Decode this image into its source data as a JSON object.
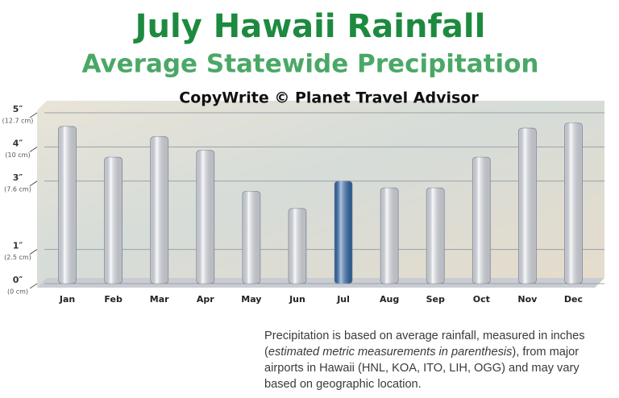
{
  "chart_data": {
    "type": "bar",
    "title": "July Hawaii Rainfall",
    "subtitle": "Average Statewide Precipitation",
    "copyright": "CopyWrite © Planet Travel Advisor",
    "categories": [
      "Jan",
      "Feb",
      "Mar",
      "Apr",
      "May",
      "Jun",
      "Jul",
      "Aug",
      "Sep",
      "Oct",
      "Nov",
      "Dec"
    ],
    "values": [
      4.6,
      3.7,
      4.3,
      3.9,
      2.7,
      2.2,
      3.0,
      2.8,
      2.8,
      3.7,
      4.55,
      4.7
    ],
    "colors": [
      "#eef2fa",
      "#eef2fa",
      "#eef2fa",
      "#eef2fa",
      "#eef2fa",
      "#eef2fa",
      "#2f6db5",
      "#eef2fa",
      "#eef2fa",
      "#eef2fa",
      "#eef2fa",
      "#eef2fa"
    ],
    "ylim": [
      0,
      5
    ],
    "yticks": [
      {
        "value": 0,
        "label": "0″"
      },
      {
        "value": 1,
        "label": "1″"
      },
      {
        "value": 3,
        "label": "3″"
      },
      {
        "value": 4,
        "label": "4″"
      },
      {
        "value": 5,
        "label": "5″"
      }
    ],
    "ytick_cm_labels": [
      "(0 cm)",
      "(2.5 cm)",
      "(7.6 cm)",
      "(10 cm)",
      "(12.7 cm)"
    ],
    "grid": true
  },
  "footnote": {
    "parts": [
      "Precipitation is based on average rainfall, measured in inches (",
      "estimated metric measurements in parenthesis",
      "), from major airports in Hawaii (HNL, KOA, ITO, LIH, OGG) and may vary based on geographic location."
    ]
  }
}
